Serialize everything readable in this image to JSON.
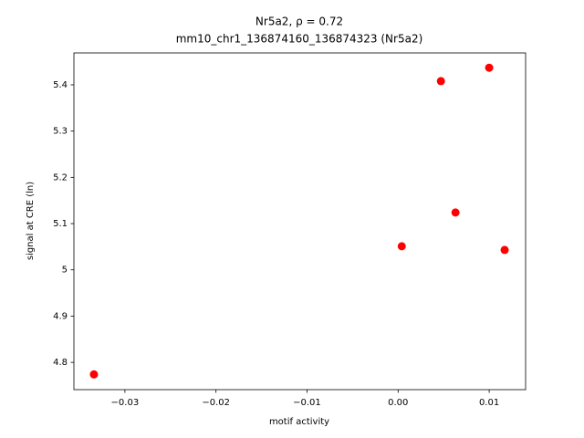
{
  "chart_data": {
    "type": "scatter",
    "title": "Nr5a2, ρ = 0.72",
    "subtitle": "mm10_chr1_136874160_136874323 (Nr5a2)",
    "x_label": "motif activity",
    "y_label": "signal at CRE (ln)",
    "color": "#ff0000",
    "x": [
      -0.0334,
      0.0047,
      0.01,
      0.0063,
      0.0004,
      0.0117
    ],
    "values": [
      4.774,
      5.408,
      5.437,
      5.124,
      5.051,
      5.043
    ],
    "xlim": [
      -0.0356,
      0.014
    ],
    "ylim": [
      4.741,
      5.469
    ],
    "xticks": [
      {
        "value": -0.03,
        "label": "−0.03"
      },
      {
        "value": -0.02,
        "label": "−0.02"
      },
      {
        "value": -0.01,
        "label": "−0.01"
      },
      {
        "value": 0,
        "label": "0.00"
      },
      {
        "value": 0.01,
        "label": "0.01"
      }
    ],
    "yticks": [
      4.8,
      4.9,
      5.0,
      5.1,
      5.2,
      5.3,
      5.4
    ],
    "grid": false
  }
}
